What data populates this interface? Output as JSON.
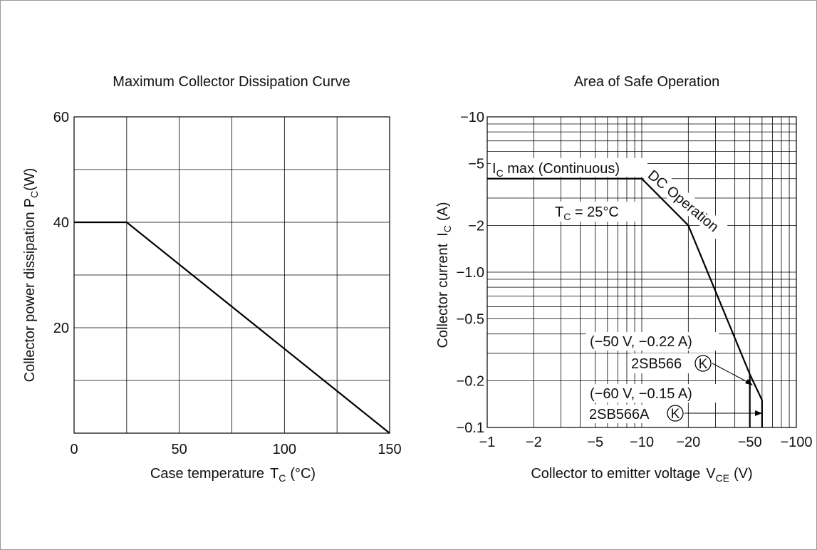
{
  "chart_data": [
    {
      "type": "line",
      "title": "Maximum Collector Dissipation Curve",
      "xlabel": "Case temperature",
      "xlabel_symbol": "T",
      "xlabel_sub": "C",
      "xlabel_unit": "(°C)",
      "ylabel": "Collector power dissipation",
      "ylabel_symbol": "P",
      "ylabel_sub": "C",
      "ylabel_unit": "(W)",
      "xlim": [
        0,
        150
      ],
      "ylim": [
        0,
        60
      ],
      "x_ticks": [
        "0",
        "50",
        "100",
        "150"
      ],
      "y_ticks": [
        "20",
        "40",
        "60"
      ],
      "grid": true,
      "series": [
        {
          "x": [
            0,
            25,
            150
          ],
          "y": [
            40,
            40,
            0
          ]
        }
      ]
    },
    {
      "type": "line",
      "title": "Area of Safe Operation",
      "xlabel": "Collector to emitter voltage",
      "xlabel_symbol": "V",
      "xlabel_sub": "CE",
      "xlabel_unit": "(V)",
      "ylabel": "Collector current",
      "ylabel_symbol": "I",
      "ylabel_sub": "C",
      "ylabel_unit": "(A)",
      "xscale": "log",
      "yscale": "log",
      "xlim": [
        -1,
        -100
      ],
      "ylim": [
        -0.1,
        -10
      ],
      "x_ticks": [
        "−1",
        "−2",
        "−5",
        "−10",
        "−20",
        "−50",
        "−100"
      ],
      "y_ticks": [
        "−0.1",
        "−0.2",
        "−0.5",
        "−1.0",
        "−2",
        "−5",
        "−10"
      ],
      "grid": true,
      "series": [
        {
          "x": [
            -1,
            -10,
            -20,
            -50,
            -50
          ],
          "y": [
            -4,
            -4,
            -2,
            -0.22,
            -0.1
          ]
        },
        {
          "x": [
            -50,
            -60,
            -60
          ],
          "y": [
            -0.22,
            -0.15,
            -0.1
          ]
        }
      ],
      "annotations": {
        "ic_max_symbol": "I",
        "ic_max_sub": "C",
        "ic_max_text": " max (Continuous)",
        "dc_operation": "DC Operation",
        "tc_symbol": "T",
        "tc_sub": "C",
        "tc_text": " = 25°C",
        "point1": "(−50 V, −0.22 A)",
        "device1_prefix": "2SB566",
        "device1_mark": "K",
        "point2": "(−60 V, −0.15 A)",
        "device2_prefix": "2SB566A",
        "device2_mark": "K"
      }
    }
  ]
}
